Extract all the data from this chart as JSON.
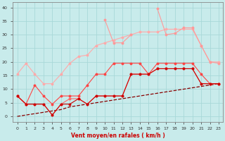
{
  "x": [
    0,
    1,
    2,
    3,
    4,
    5,
    6,
    7,
    8,
    9,
    10,
    11,
    12,
    13,
    14,
    15,
    16,
    17,
    18,
    19,
    20,
    21,
    22,
    23
  ],
  "line_pink_top": [
    15.5,
    19.5,
    15.5,
    12,
    12,
    15.5,
    19.5,
    22,
    22.5,
    26,
    27,
    28,
    29,
    30,
    31,
    31,
    31,
    32,
    32,
    32,
    32,
    26,
    20,
    20
  ],
  "line_light_peak": [
    null,
    null,
    null,
    null,
    null,
    null,
    null,
    null,
    null,
    null,
    35.5,
    27,
    27,
    30,
    null,
    null,
    39.5,
    30,
    30.5,
    32.5,
    32.5,
    26,
    20,
    19.5
  ],
  "line_med_red": [
    7.5,
    4.5,
    11.5,
    7.5,
    4.5,
    7.5,
    7.5,
    7.5,
    11.5,
    15.5,
    15.5,
    19.5,
    19.5,
    19.5,
    19.5,
    15.5,
    19.5,
    19.5,
    19.5,
    19.5,
    19.5,
    15.5,
    12,
    12
  ],
  "line_dark1": [
    7.5,
    4.5,
    4.5,
    4.5,
    0.5,
    4.5,
    4.5,
    6.5,
    4.5,
    7.5,
    7.5,
    7.5,
    7.5,
    15.5,
    15.5,
    15.5,
    17.5,
    17.5,
    17.5,
    17.5,
    17.5,
    12,
    12,
    12
  ],
  "line_dark2": [
    7.5,
    4.5,
    4.5,
    4.5,
    0.5,
    4.5,
    6.5,
    6.5,
    4.5,
    7.5,
    7.5,
    7.5,
    7.5,
    15.5,
    15.5,
    15.5,
    17.5,
    17.5,
    17.5,
    17.5,
    17.5,
    12,
    12,
    12
  ],
  "line_dashed": [
    0,
    0.5,
    1,
    1.5,
    2,
    2.5,
    3.5,
    4,
    4.5,
    5,
    5.5,
    6,
    6.5,
    7,
    7.5,
    8,
    8.5,
    9,
    9.5,
    10,
    10.5,
    11,
    11.5,
    12
  ],
  "colors": {
    "line_pink_top": "#FFAAAA",
    "line_light_peak": "#FF9999",
    "line_med_red": "#FF4444",
    "line_dark1": "#CC0000",
    "line_dark2": "#FF6666",
    "line_dashed": "#880000"
  },
  "bg_color": "#C8EBEB",
  "grid_color": "#A8D8D8",
  "xlabel": "Vent moyen/en rafales ( km/h )",
  "xlabel_color": "#CC0000",
  "ylim": [
    -2,
    42
  ],
  "xlim": [
    -0.5,
    23.5
  ],
  "yticks": [
    0,
    5,
    10,
    15,
    20,
    25,
    30,
    35,
    40
  ],
  "xticks": [
    0,
    1,
    2,
    3,
    4,
    5,
    6,
    7,
    8,
    9,
    10,
    11,
    12,
    13,
    14,
    15,
    16,
    17,
    18,
    19,
    20,
    21,
    22,
    23
  ]
}
